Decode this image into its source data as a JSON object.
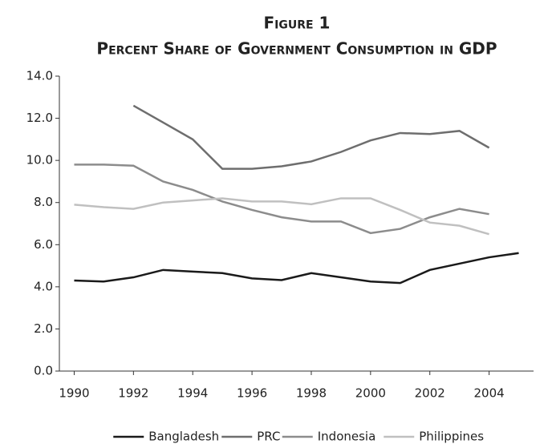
{
  "chart_data": {
    "type": "line",
    "title": "Figure 1",
    "subtitle": "Percent Share of Government Consumption in GDP",
    "x": [
      1990,
      1991,
      1992,
      1993,
      1994,
      1995,
      1996,
      1997,
      1998,
      1999,
      2000,
      2001,
      2002,
      2003,
      2004,
      2005
    ],
    "xlim": [
      1989.5,
      2005.5
    ],
    "xticks": [
      1990,
      1992,
      1994,
      1996,
      1998,
      2000,
      2002,
      2004
    ],
    "ylim": [
      0,
      14
    ],
    "yticks": [
      {
        "value": 0,
        "label": "0.0"
      },
      {
        "value": 2,
        "label": "2.0"
      },
      {
        "value": 4,
        "label": "4.0"
      },
      {
        "value": 6,
        "label": "6.0"
      },
      {
        "value": 8,
        "label": "8.0"
      },
      {
        "value": 10,
        "label": "10.0"
      },
      {
        "value": 12,
        "label": "12.0"
      },
      {
        "value": 14,
        "label": "14.0"
      }
    ],
    "series": [
      {
        "name": "Bangladesh",
        "color": "#1a1a1a",
        "values": [
          4.3,
          4.25,
          4.45,
          4.8,
          4.72,
          4.65,
          4.4,
          4.32,
          4.65,
          4.45,
          4.25,
          4.18,
          4.8,
          5.1,
          5.4,
          5.6
        ]
      },
      {
        "name": "PRC",
        "color": "#6e6e6e",
        "values": [
          null,
          null,
          12.6,
          11.8,
          11.0,
          9.6,
          9.6,
          9.72,
          9.95,
          10.4,
          10.95,
          11.3,
          11.25,
          11.4,
          10.6,
          null
        ]
      },
      {
        "name": "Indonesia",
        "color": "#8c8c8c",
        "values": [
          9.8,
          9.8,
          9.75,
          9.0,
          8.6,
          8.05,
          7.65,
          7.3,
          7.1,
          7.1,
          6.55,
          6.75,
          7.3,
          7.7,
          7.45,
          null
        ]
      },
      {
        "name": "Philippines",
        "color": "#c0c0c0",
        "values": [
          7.9,
          7.78,
          7.7,
          8.0,
          8.1,
          8.2,
          8.05,
          8.05,
          7.92,
          8.2,
          8.2,
          7.65,
          7.05,
          6.9,
          6.5,
          null
        ]
      }
    ]
  }
}
